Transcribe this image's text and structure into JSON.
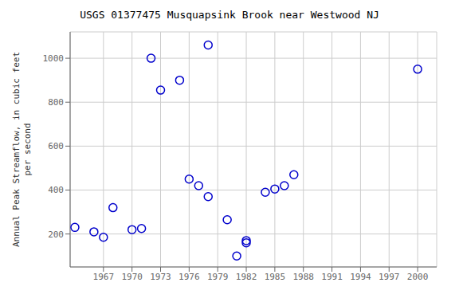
{
  "chart_data": {
    "type": "scatter",
    "title": "USGS 01377475 Musquapsink Brook near Westwood NJ",
    "ylabel": "Annual Peak Streamflow, in cubic feet\nper second",
    "x": [
      1964,
      1966,
      1967,
      1968,
      1970,
      1971,
      1972,
      1973,
      1975,
      1976,
      1977,
      1978,
      1978,
      1980,
      1981,
      1982,
      1982,
      1984,
      1985,
      1986,
      1987,
      2000
    ],
    "values": [
      230,
      210,
      185,
      320,
      220,
      225,
      1000,
      855,
      900,
      450,
      420,
      370,
      1060,
      265,
      100,
      170,
      160,
      390,
      405,
      420,
      470,
      950
    ],
    "color": "#0000cc",
    "marker": "circle",
    "xlim": [
      1963.5,
      2002
    ],
    "ylim": [
      50,
      1120
    ],
    "xticks": [
      1967,
      1970,
      1973,
      1976,
      1979,
      1982,
      1985,
      1988,
      1991,
      1994,
      1997,
      2000
    ],
    "yticks": [
      200,
      400,
      600,
      800,
      1000
    ],
    "grid": true
  }
}
